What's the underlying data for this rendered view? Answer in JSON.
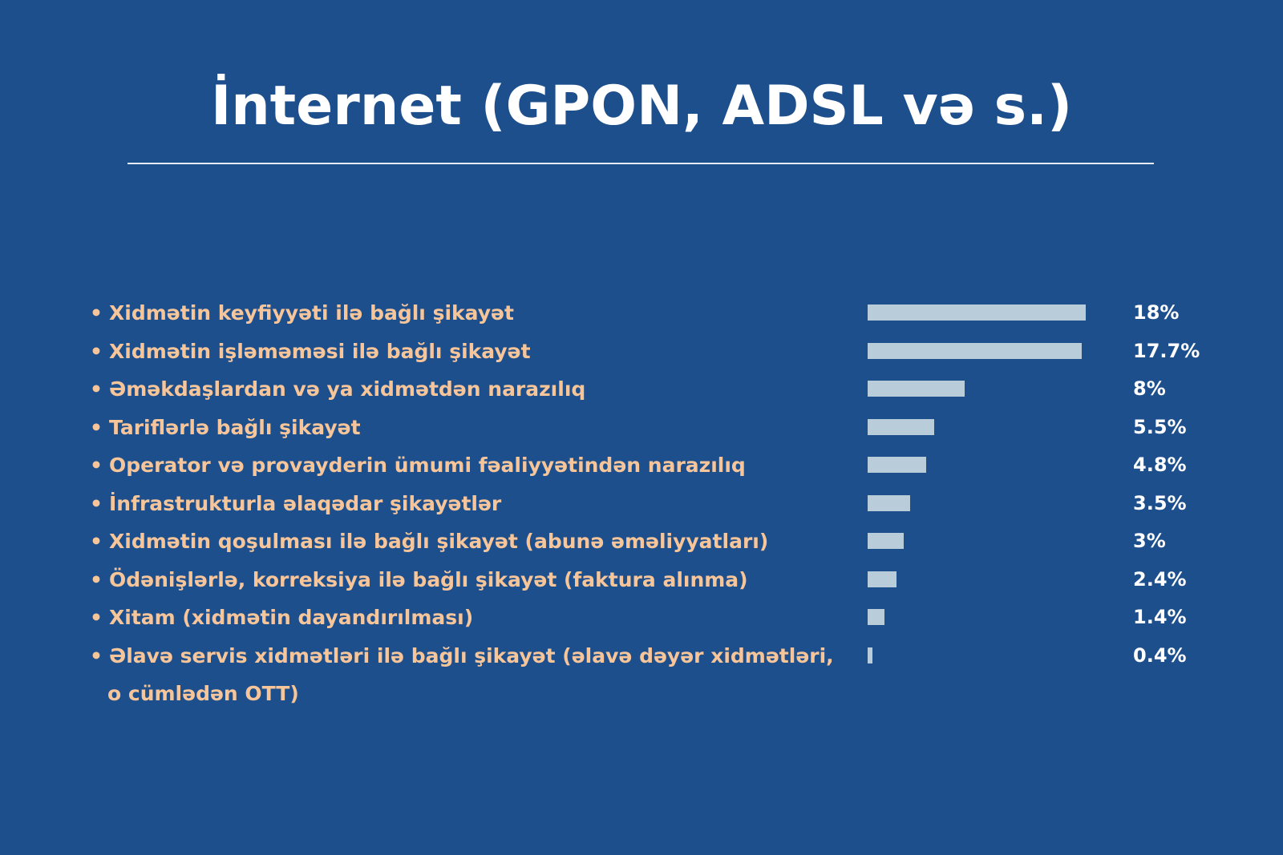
{
  "title": "İnternet (GPON, ADSL və s.)",
  "chart_data": {
    "type": "bar",
    "orientation": "horizontal",
    "title": "İnternet (GPON, ADSL və s.)",
    "xlim": [
      0,
      18
    ],
    "categories": [
      "Xidmətin keyfiyyəti ilə bağlı şikayət",
      "Xidmətin işləməməsi ilə bağlı şikayət",
      "Əməkdaşlardan və ya xidmətdən narazılıq",
      "Tariflərlə bağlı şikayət",
      "Operator və provayderin ümumi fəaliyyətindən narazılıq",
      "İnfrastrukturla əlaqədar şikayətlər",
      "Xidmətin qoşulması ilə bağlı şikayət (abunə əməliyyatları)",
      "Ödənişlərlə, korreksiya ilə bağlı şikayət (faktura alınma)",
      "Xitam (xidmətin dayandırılması)",
      "Əlavə servis xidmətləri ilə bağlı şikayət (əlavə dəyər xidmətləri, o cümlədən OTT)"
    ],
    "values": [
      18,
      17.7,
      8,
      5.5,
      4.8,
      3.5,
      3,
      2.4,
      1.4,
      0.4
    ],
    "value_labels": [
      "18%",
      "17.7%",
      "8%",
      "5.5%",
      "4.8%",
      "3.5%",
      "3%",
      "2.4%",
      "1.4%",
      "0.4%"
    ],
    "label_lines": [
      [
        "Xidmətin keyfiyyəti ilə bağlı şikayət"
      ],
      [
        "Xidmətin işləməməsi ilə bağlı şikayət"
      ],
      [
        "Əməkdaşlardan və ya xidmətdən narazılıq"
      ],
      [
        "Tariflərlə bağlı şikayət"
      ],
      [
        "Operator və provayderin ümumi fəaliyyətindən narazılıq"
      ],
      [
        "İnfrastrukturla əlaqədar şikayətlər"
      ],
      [
        "Xidmətin qoşulması ilə bağlı şikayət (abunə əməliyyatları)"
      ],
      [
        "Ödənişlərlə, korreksiya ilə bağlı şikayət (faktura alınma)"
      ],
      [
        "Xitam (xidmətin dayandırılması)"
      ],
      [
        "Əlavə servis xidmətləri ilə bağlı şikayət (əlavə dəyər xidmətləri,",
        "o cümlədən OTT)"
      ]
    ],
    "grid": false,
    "legend": "none"
  },
  "colors": {
    "background": "#1d4f8d",
    "bar": "#b8ccd9",
    "label": "#f7c59a",
    "value": "#ffffff"
  }
}
